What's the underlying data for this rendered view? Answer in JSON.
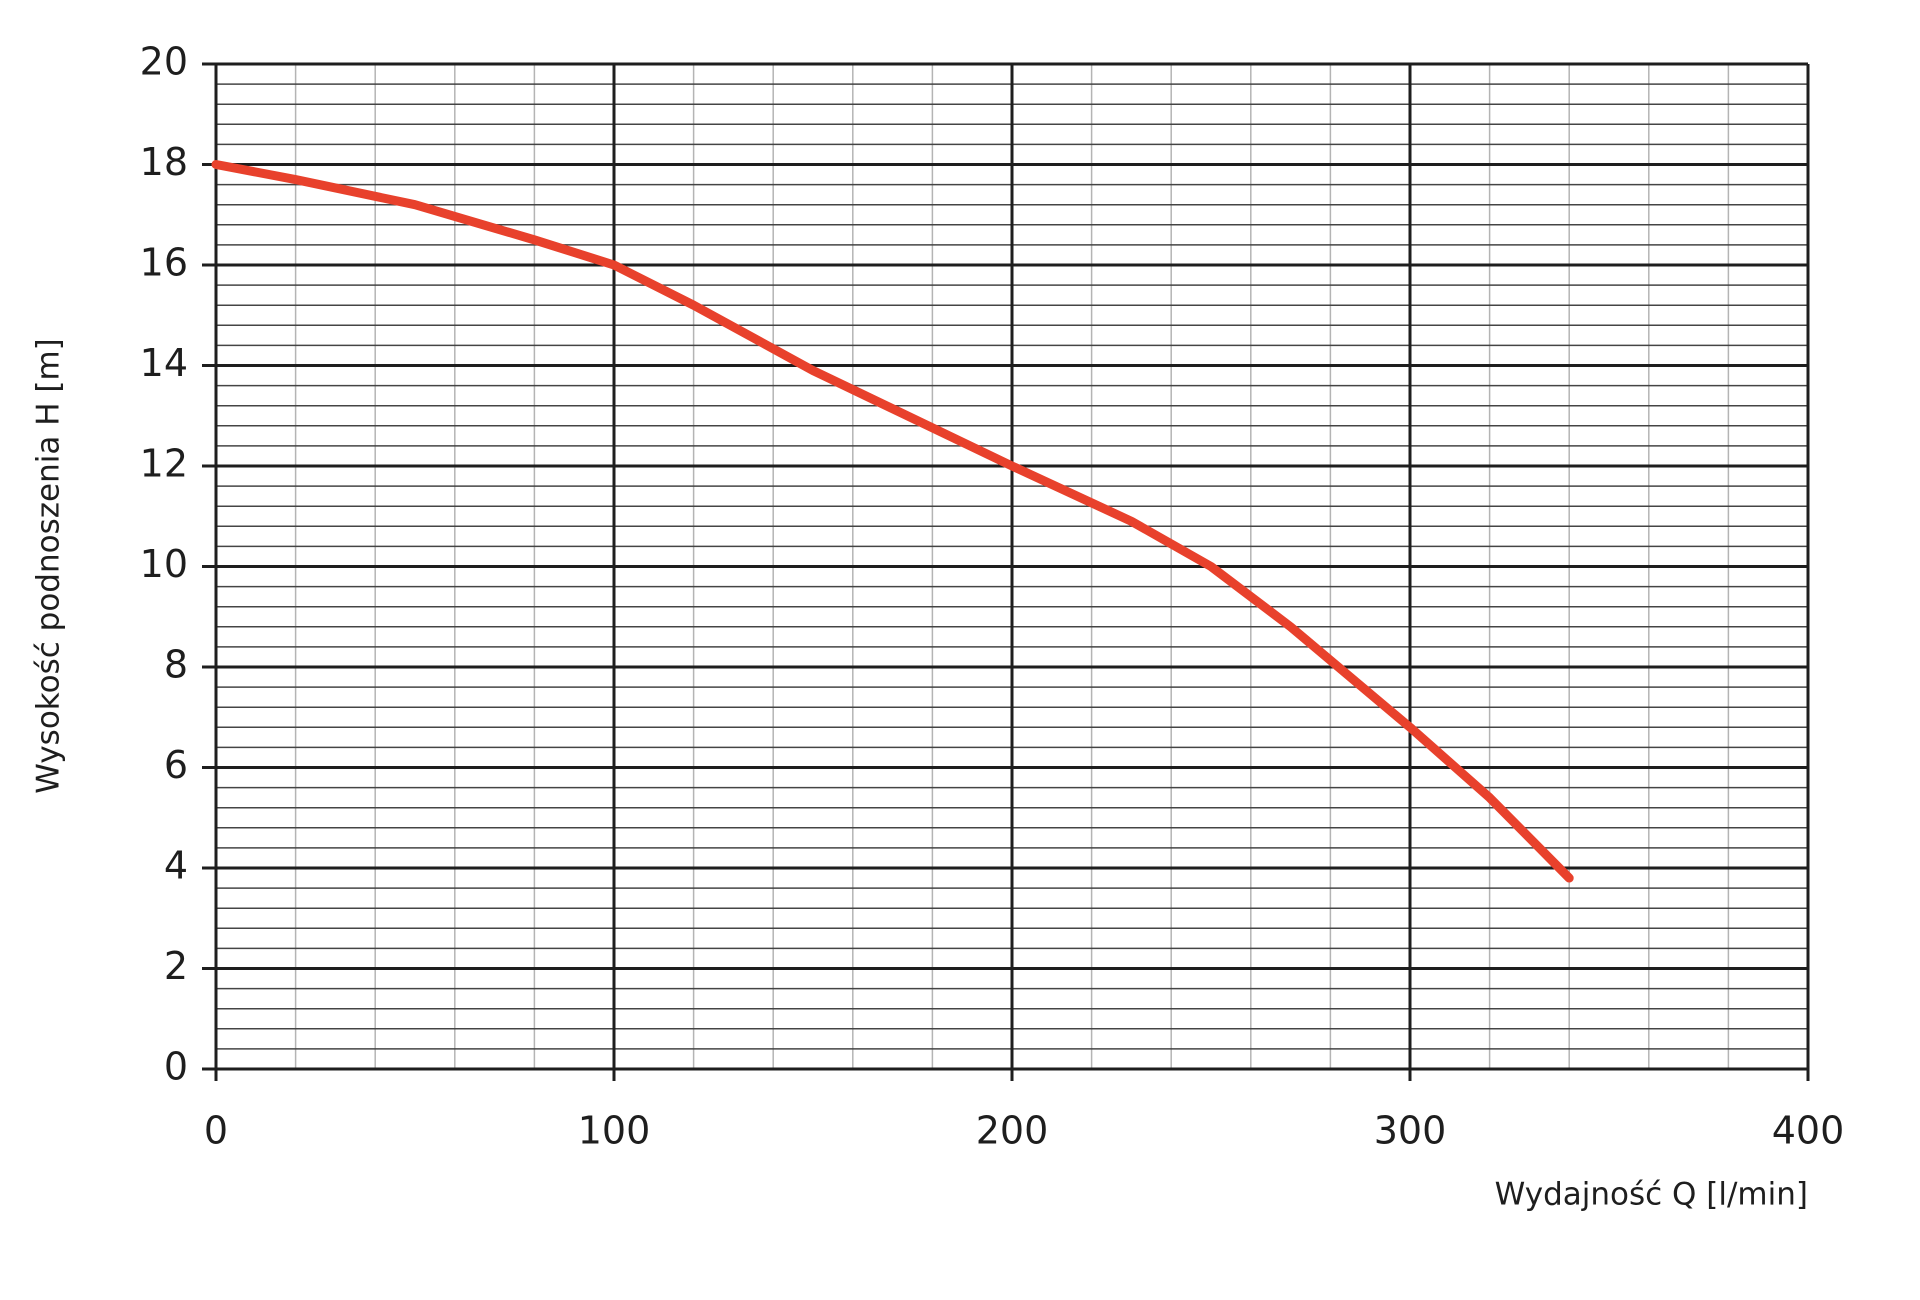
{
  "chart_data": {
    "type": "line",
    "x_label": "Wydajność Q [l/min]",
    "y_label": "Wysokość podnoszenia H [m]",
    "x": [
      0,
      20,
      50,
      80,
      100,
      120,
      150,
      200,
      230,
      250,
      270,
      300,
      320,
      340
    ],
    "values": [
      18,
      17.7,
      17.2,
      16.5,
      16,
      15.2,
      13.9,
      12,
      10.9,
      10,
      8.8,
      6.8,
      5.4,
      3.8
    ],
    "color": "#e8412c",
    "xlim": [
      0,
      400
    ],
    "xticks": [
      0,
      100,
      200,
      300,
      400
    ],
    "ylim": [
      0,
      20
    ],
    "yticks": [
      0,
      2,
      4,
      6,
      8,
      10,
      12,
      14,
      16,
      18,
      20
    ],
    "grid": true,
    "minor_grid": {
      "x": 5,
      "y": 5
    }
  }
}
